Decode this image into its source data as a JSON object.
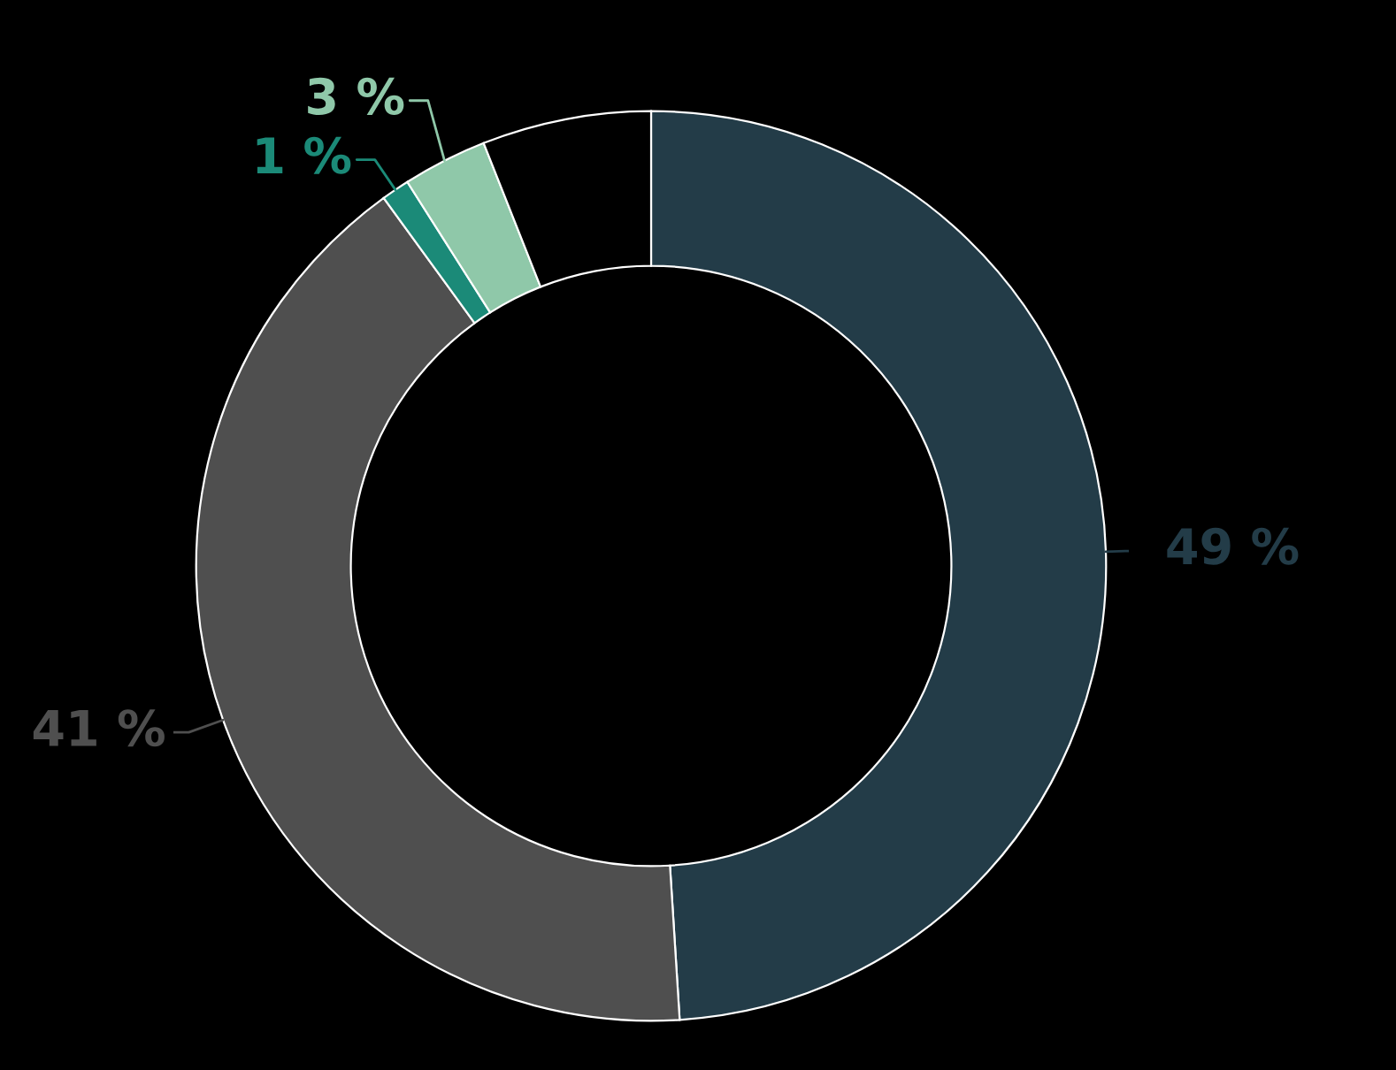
{
  "chart_data": {
    "type": "donut",
    "categories": [
      null,
      null,
      null,
      null,
      null
    ],
    "values": [
      49,
      41,
      1,
      3,
      6
    ],
    "colors": [
      "#233c48",
      "#4f4f4f",
      "#1b8a78",
      "#8fc8a9",
      "#000000"
    ],
    "value_labels": [
      "49 %",
      "41 %",
      "1 %",
      "3 %",
      null
    ]
  }
}
